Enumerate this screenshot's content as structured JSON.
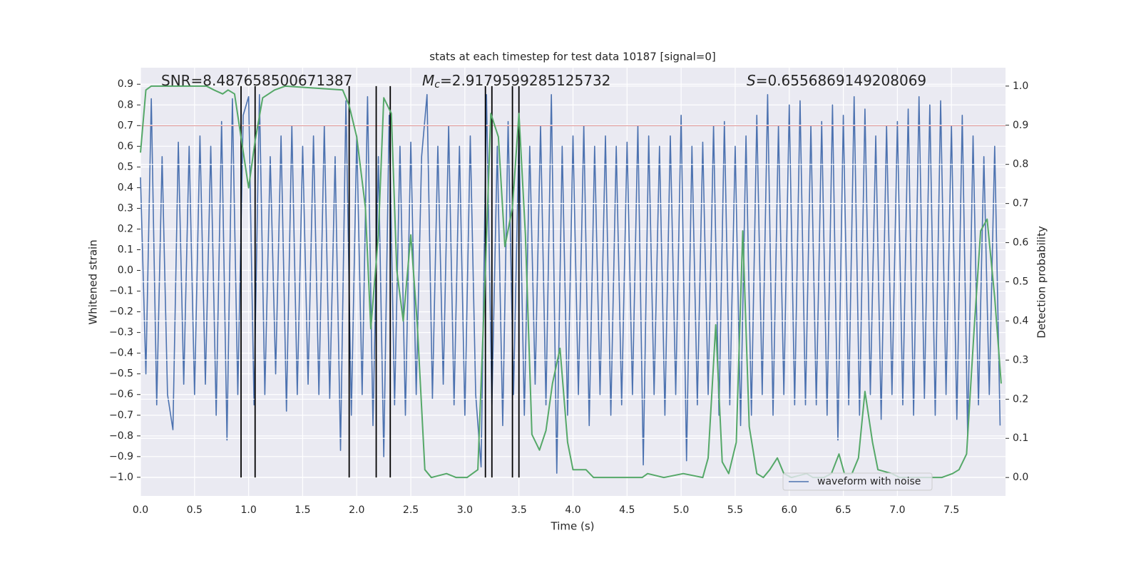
{
  "chart_data": {
    "type": "line",
    "title": "stats at each timestep for test data 10187 [signal=0]",
    "xlabel": "Time (s)",
    "ylabel": "Whitened strain",
    "y2label": "Detection probability",
    "xlim": [
      0,
      8
    ],
    "ylim": [
      -1.09,
      0.98
    ],
    "y2lim": [
      -0.047,
      1.047
    ],
    "xticks": [
      {
        "value": 0,
        "label": "0.0"
      },
      0.5,
      {
        "value": 1,
        "label": "1.0"
      },
      1.5,
      {
        "value": 2,
        "label": "2.0"
      },
      2.5,
      {
        "value": 3,
        "label": "3.0"
      },
      3.5,
      {
        "value": 4,
        "label": "4.0"
      },
      4.5,
      {
        "value": 5,
        "label": "5.0"
      },
      5.5,
      {
        "value": 6,
        "label": "6.0"
      },
      6.5,
      {
        "value": 7,
        "label": "7.0"
      },
      7.5
    ],
    "yticks": [
      {
        "value": -1,
        "label": "−1.0"
      },
      {
        "value": -0.9,
        "label": "−0.9"
      },
      {
        "value": -0.8,
        "label": "−0.8"
      },
      {
        "value": -0.7,
        "label": "−0.7"
      },
      {
        "value": -0.6,
        "label": "−0.6"
      },
      {
        "value": -0.5,
        "label": "−0.5"
      },
      {
        "value": -0.4,
        "label": "−0.4"
      },
      {
        "value": -0.3,
        "label": "−0.3"
      },
      {
        "value": -0.2,
        "label": "−0.2"
      },
      {
        "value": -0.1,
        "label": "−0.1"
      },
      {
        "value": 0,
        "label": "0.0"
      },
      0.1,
      0.2,
      0.3,
      0.4,
      0.5,
      0.6,
      0.7,
      0.8,
      0.9
    ],
    "y2ticks": [
      {
        "value": 0,
        "label": "0.0"
      },
      0.1,
      0.2,
      0.3,
      0.4,
      0.5,
      0.6,
      0.7,
      0.8,
      0.9,
      {
        "value": 1,
        "label": "1.0"
      }
    ],
    "grid": true,
    "legend": "lower right",
    "series": [
      {
        "name": "waveform with noise",
        "color": "#4c72b0",
        "axis": "y",
        "x": [
          0,
          0.05,
          0.1,
          0.15,
          0.2,
          0.25,
          0.3,
          0.35,
          0.4,
          0.45,
          0.5,
          0.55,
          0.6,
          0.65,
          0.7,
          0.75,
          0.8,
          0.85,
          0.9,
          0.95,
          1,
          1.05,
          1.1,
          1.15,
          1.2,
          1.25,
          1.3,
          1.35,
          1.4,
          1.45,
          1.5,
          1.55,
          1.6,
          1.65,
          1.7,
          1.75,
          1.8,
          1.85,
          1.9,
          1.95,
          2,
          2.05,
          2.1,
          2.15,
          2.2,
          2.25,
          2.3,
          2.35,
          2.4,
          2.45,
          2.5,
          2.55,
          2.6,
          2.65,
          2.7,
          2.75,
          2.8,
          2.85,
          2.9,
          2.95,
          3,
          3.05,
          3.1,
          3.15,
          3.2,
          3.25,
          3.3,
          3.35,
          3.4,
          3.45,
          3.5,
          3.55,
          3.6,
          3.65,
          3.7,
          3.75,
          3.8,
          3.85,
          3.9,
          3.95,
          4,
          4.05,
          4.1,
          4.15,
          4.2,
          4.25,
          4.3,
          4.35,
          4.4,
          4.45,
          4.5,
          4.55,
          4.6,
          4.65,
          4.7,
          4.75,
          4.8,
          4.85,
          4.9,
          4.95,
          5,
          5.05,
          5.1,
          5.15,
          5.2,
          5.25,
          5.3,
          5.35,
          5.4,
          5.45,
          5.5,
          5.55,
          5.6,
          5.65,
          5.7,
          5.75,
          5.8,
          5.85,
          5.9,
          5.95,
          6,
          6.05,
          6.1,
          6.15,
          6.2,
          6.25,
          6.3,
          6.35,
          6.4,
          6.45,
          6.5,
          6.55,
          6.6,
          6.65,
          6.7,
          6.75,
          6.8,
          6.85,
          6.9,
          6.95,
          7,
          7.05,
          7.1,
          7.15,
          7.2,
          7.25,
          7.3,
          7.35,
          7.4,
          7.45,
          7.5,
          7.55,
          7.6,
          7.65,
          7.7,
          7.75,
          7.8,
          7.85,
          7.9,
          7.95
        ],
        "values": [
          0.45,
          -0.5,
          0.83,
          -0.65,
          0.55,
          -0.6,
          -0.77,
          0.62,
          -0.55,
          0.6,
          -0.6,
          0.65,
          -0.55,
          0.6,
          -0.7,
          0.72,
          -0.82,
          0.83,
          -0.6,
          0.75,
          0.84,
          -0.65,
          0.85,
          -0.6,
          0.55,
          -0.5,
          0.65,
          -0.68,
          0.7,
          -0.6,
          0.6,
          -0.55,
          0.65,
          -0.6,
          0.7,
          -0.62,
          0.55,
          -0.87,
          0.82,
          -0.7,
          0.65,
          -0.6,
          0.84,
          -0.75,
          0.55,
          -0.9,
          0.75,
          -0.65,
          0.6,
          -0.7,
          0.62,
          -0.6,
          0.55,
          0.85,
          -0.62,
          0.6,
          -0.55,
          0.7,
          -0.65,
          0.6,
          -0.7,
          0.65,
          -0.6,
          -0.95,
          0.85,
          -0.65,
          0.6,
          -0.75,
          0.72,
          -0.6,
          0.65,
          -0.7,
          0.6,
          -0.55,
          0.7,
          -0.65,
          0.85,
          -0.98,
          0.6,
          -0.7,
          0.65,
          -0.6,
          0.7,
          -0.75,
          0.6,
          -0.6,
          0.65,
          -0.7,
          0.6,
          -0.65,
          0.62,
          -0.6,
          0.7,
          -0.94,
          0.65,
          -0.6,
          0.6,
          -0.7,
          0.65,
          -0.6,
          0.75,
          -0.92,
          0.6,
          -0.65,
          0.62,
          -0.6,
          0.7,
          -0.7,
          0.72,
          -0.65,
          0.6,
          -0.75,
          0.65,
          -0.7,
          0.75,
          -0.6,
          0.85,
          -0.7,
          0.7,
          -0.6,
          0.8,
          -0.65,
          0.82,
          -0.65,
          0.7,
          -0.65,
          0.72,
          -0.7,
          0.8,
          -0.82,
          0.75,
          -0.65,
          0.84,
          -0.7,
          0.78,
          -0.6,
          0.65,
          -0.72,
          0.7,
          -0.6,
          0.72,
          -0.65,
          0.78,
          -0.7,
          0.84,
          -0.62,
          0.8,
          -0.7,
          0.82,
          -0.6,
          0.7,
          -0.72,
          0.75,
          -0.8,
          0.65,
          -0.65,
          0.55,
          -0.6,
          0.6,
          -0.75
        ]
      },
      {
        "color": "#55a868",
        "axis": "y2",
        "x": [
          0,
          0.05,
          0.1,
          0.61,
          0.68,
          0.76,
          0.81,
          0.87,
          1,
          1.06,
          1.13,
          1.24,
          1.34,
          1.87,
          1.93,
          2,
          2.08,
          2.13,
          2.2,
          2.25,
          2.32,
          2.37,
          2.43,
          2.5,
          2.56,
          2.63,
          2.69,
          2.83,
          2.92,
          3.02,
          3.12,
          3.19,
          3.24,
          3.31,
          3.37,
          3.44,
          3.5,
          3.56,
          3.62,
          3.69,
          3.75,
          3.81,
          3.88,
          3.95,
          4,
          4.06,
          4.12,
          4.19,
          4.44,
          4.64,
          4.69,
          4.84,
          5.02,
          5.2,
          5.25,
          5.32,
          5.38,
          5.44,
          5.51,
          5.57,
          5.63,
          5.7,
          5.76,
          5.82,
          5.89,
          5.95,
          6.02,
          6.16,
          6.22,
          6.32,
          6.39,
          6.46,
          6.51,
          6.58,
          6.64,
          6.7,
          6.77,
          6.82,
          6.95,
          7.02,
          7.41,
          7.51,
          7.57,
          7.64,
          7.71,
          7.77,
          7.83,
          7.9,
          7.96
        ],
        "values": [
          0.83,
          0.99,
          1,
          1,
          0.99,
          0.98,
          0.99,
          0.98,
          0.74,
          0.86,
          0.97,
          0.99,
          1,
          0.99,
          0.95,
          0.87,
          0.69,
          0.38,
          0.62,
          0.97,
          0.93,
          0.53,
          0.4,
          0.62,
          0.39,
          0.02,
          0,
          0.01,
          0,
          0,
          0.02,
          0.53,
          0.93,
          0.87,
          0.59,
          0.69,
          0.93,
          0.62,
          0.11,
          0.07,
          0.12,
          0.24,
          0.33,
          0.09,
          0.02,
          0.02,
          0.02,
          0,
          0,
          0,
          0.01,
          0,
          0.01,
          0,
          0.05,
          0.39,
          0.04,
          0.01,
          0.09,
          0.63,
          0.13,
          0.01,
          0,
          0.02,
          0.05,
          0.01,
          0,
          0.01,
          0,
          0,
          0.01,
          0.06,
          0.01,
          0.01,
          0.05,
          0.22,
          0.09,
          0.02,
          0.01,
          0,
          0,
          0.01,
          0.02,
          0.06,
          0.38,
          0.63,
          0.66,
          0.46,
          0.24
        ]
      }
    ],
    "hline": {
      "y": 0.7,
      "color": "#c44e52",
      "axis": "y"
    },
    "vlines": {
      "x": [
        0.93,
        1.06,
        1.93,
        2.18,
        2.31,
        3.19,
        3.25,
        3.44,
        3.5
      ],
      "ymin": 0,
      "ymax": 1,
      "axis": "y2",
      "color": "#000000"
    },
    "annotations": [
      {
        "text": "SNR=8.487658500671387"
      },
      {
        "symbol": "M",
        "subscript": "c",
        "text": "=2.9179599285125732"
      },
      {
        "symbol": "S",
        "text": "=0.6556869149208069"
      }
    ]
  }
}
